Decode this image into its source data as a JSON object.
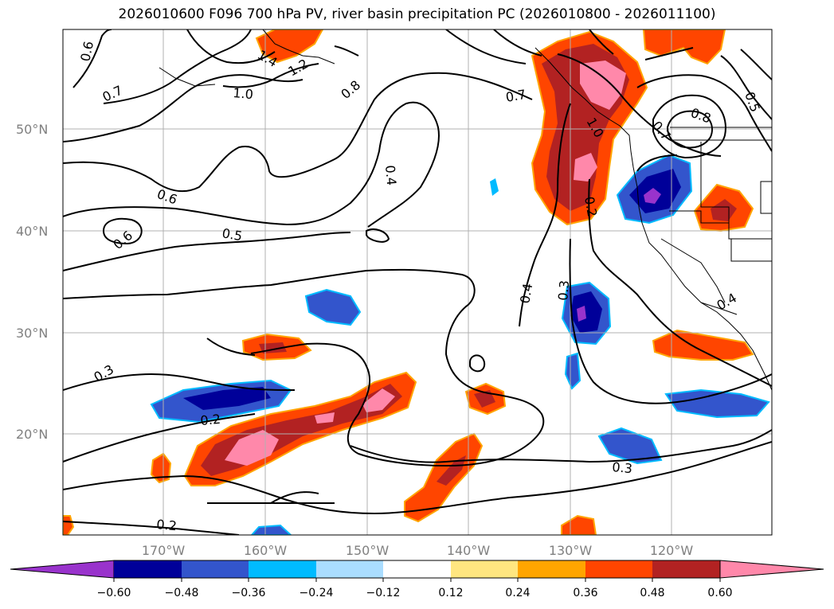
{
  "title": "2026010600 F096 700 hPa PV, river basin precipitation PC (2026010800 - 2026011100)",
  "lat_labels": [
    "50°N",
    "40°N",
    "30°N",
    "20°N"
  ],
  "lon_labels": [
    "170°W",
    "160°W",
    "150°W",
    "140°W",
    "130°W",
    "120°W"
  ],
  "contour_labels": [
    "0.6",
    "0.7",
    "1.0",
    "1.2",
    "1.4",
    "0.8",
    "0.7",
    "1.0",
    "0.8",
    "0.7",
    "0.5",
    "0.4",
    "0.6",
    "0.6",
    "0.5",
    "0.2",
    "0.4",
    "0.3",
    "0.3",
    "0.2",
    "0.3",
    "0.2",
    "0.4"
  ],
  "colorbar": {
    "ticks": [
      "−0.60",
      "−0.48",
      "−0.36",
      "−0.24",
      "−0.12",
      "0.12",
      "0.24",
      "0.36",
      "0.48",
      "0.60"
    ],
    "colors": [
      "#9933cc",
      "#000099",
      "#3355cc",
      "#00bbff",
      "#aaddff",
      "#ffffff",
      "#ffe680",
      "#ffa500",
      "#ff4500",
      "#b22222",
      "#ff88aa",
      "#ff88aa"
    ]
  },
  "legend_colors": {
    "neg_extreme": "#9933cc",
    "neg_strong": "#000099",
    "neg_mid": "#3355cc",
    "neg_light": "#00bbff",
    "neg_pale": "#aaddff",
    "pos_pale": "#ffe680",
    "pos_light": "#ffa500",
    "pos_mid": "#ff4500",
    "pos_strong": "#b22222",
    "pos_extreme": "#ff88aa"
  }
}
